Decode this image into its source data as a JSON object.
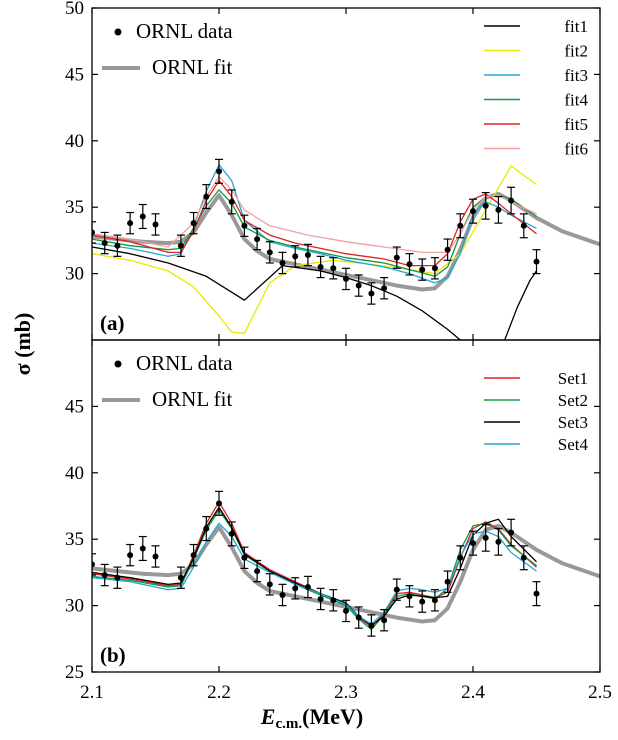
{
  "colors": {
    "data": "#000000",
    "ornl_fit": "#999999",
    "fit1": "#000000",
    "fit2": "#e8e800",
    "fit3": "#22a6d6",
    "fit4": "#119944",
    "fit5": "#dd2222",
    "fit6": "#f2a0a0",
    "set1": "#dd2222",
    "set2": "#119944",
    "set3": "#000000",
    "set4": "#22a6d6"
  },
  "chart_data": [
    {
      "type": "line",
      "panel_label": "(a)",
      "xlabel": "E",
      "xlabel_subscript": "c.m.",
      "xlabel_unit": "(MeV)",
      "ylabel": "σ (mb)",
      "xlim": [
        2.1,
        2.5
      ],
      "ylim": [
        25,
        50
      ],
      "x_ticks": [
        "2.1",
        "2.2",
        "2.3",
        "2.4",
        "2.5"
      ],
      "y_ticks": [
        "30",
        "35",
        "40",
        "45",
        "50"
      ],
      "legend_left": [
        "ORNL data",
        "ORNL fit"
      ],
      "legend_right": [
        "fit1",
        "fit2",
        "fit3",
        "fit4",
        "fit5",
        "fit6"
      ],
      "data_points": {
        "name": "ORNL data",
        "x": [
          2.1,
          2.11,
          2.12,
          2.13,
          2.14,
          2.15,
          2.17,
          2.18,
          2.19,
          2.2,
          2.21,
          2.22,
          2.23,
          2.24,
          2.25,
          2.26,
          2.27,
          2.28,
          2.29,
          2.3,
          2.31,
          2.32,
          2.33,
          2.34,
          2.35,
          2.36,
          2.37,
          2.38,
          2.39,
          2.4,
          2.41,
          2.42,
          2.43,
          2.44,
          2.45
        ],
        "y": [
          33.1,
          32.3,
          32.1,
          33.8,
          34.3,
          33.7,
          32.1,
          33.8,
          35.8,
          37.7,
          35.4,
          33.6,
          32.6,
          31.6,
          30.8,
          31.3,
          31.4,
          30.5,
          30.4,
          29.6,
          29.1,
          28.5,
          28.9,
          31.2,
          30.7,
          30.3,
          30.4,
          31.8,
          33.6,
          34.7,
          35.1,
          34.8,
          35.5,
          33.6,
          30.9
        ],
        "err": [
          0.8,
          0.8,
          0.8,
          0.8,
          0.9,
          0.8,
          0.8,
          0.8,
          0.9,
          0.9,
          0.9,
          0.8,
          0.8,
          0.8,
          0.8,
          0.8,
          0.8,
          0.8,
          0.8,
          0.8,
          0.8,
          0.8,
          0.8,
          0.8,
          0.8,
          0.8,
          0.8,
          0.8,
          0.9,
          0.9,
          1.0,
          1.0,
          1.0,
          0.9,
          0.9
        ]
      },
      "ornl_fit": {
        "name": "ORNL fit",
        "x": [
          2.1,
          2.12,
          2.14,
          2.16,
          2.17,
          2.18,
          2.19,
          2.2,
          2.21,
          2.22,
          2.23,
          2.24,
          2.26,
          2.28,
          2.3,
          2.32,
          2.34,
          2.36,
          2.37,
          2.38,
          2.39,
          2.4,
          2.41,
          2.42,
          2.43,
          2.45,
          2.47,
          2.5
        ],
        "y": [
          32.8,
          32.6,
          32.4,
          32.3,
          32.4,
          33.1,
          34.6,
          35.9,
          34.4,
          32.6,
          31.7,
          31.1,
          30.7,
          30.3,
          29.9,
          29.5,
          29.1,
          28.8,
          28.9,
          29.8,
          31.8,
          34.2,
          35.7,
          36.0,
          35.5,
          34.2,
          33.2,
          32.2
        ]
      },
      "series": [
        {
          "name": "fit1",
          "x": [
            2.1,
            2.13,
            2.16,
            2.19,
            2.22,
            2.25,
            2.28,
            2.3,
            2.32,
            2.34,
            2.36,
            2.38,
            2.39
          ],
          "y": [
            32.0,
            31.5,
            30.8,
            29.8,
            28.0,
            30.6,
            30.2,
            29.7,
            29.1,
            28.3,
            27.2,
            25.8,
            25.0
          ]
        },
        {
          "name": "fit1",
          "x": [
            2.425,
            2.435,
            2.445,
            2.45
          ],
          "y": [
            25.0,
            27.5,
            29.5,
            30.2
          ]
        },
        {
          "name": "fit2",
          "x": [
            2.1,
            2.13,
            2.16,
            2.18,
            2.2,
            2.21,
            2.22,
            2.24,
            2.26,
            2.29,
            2.32,
            2.35,
            2.37,
            2.39,
            2.41,
            2.43,
            2.45
          ],
          "y": [
            31.5,
            31.0,
            30.2,
            29.0,
            26.8,
            25.6,
            25.5,
            29.3,
            30.6,
            31.0,
            30.7,
            30.3,
            30.0,
            31.5,
            34.8,
            38.1,
            36.7
          ]
        },
        {
          "name": "fit3",
          "x": [
            2.1,
            2.13,
            2.16,
            2.17,
            2.18,
            2.19,
            2.2,
            2.21,
            2.22,
            2.24,
            2.26,
            2.28,
            2.3,
            2.33,
            2.35,
            2.37,
            2.38,
            2.39,
            2.4,
            2.41,
            2.42,
            2.43,
            2.45
          ],
          "y": [
            32.3,
            31.9,
            31.3,
            31.5,
            33.5,
            36.2,
            38.2,
            37.0,
            34.0,
            32.4,
            31.9,
            31.5,
            31.0,
            30.5,
            30.0,
            29.3,
            29.7,
            31.5,
            34.5,
            35.4,
            35.0,
            34.4,
            33.4
          ]
        },
        {
          "name": "fit4",
          "x": [
            2.1,
            2.13,
            2.16,
            2.17,
            2.18,
            2.19,
            2.2,
            2.21,
            2.22,
            2.24,
            2.26,
            2.28,
            2.3,
            2.33,
            2.35,
            2.37,
            2.38,
            2.39,
            2.4,
            2.41,
            2.42,
            2.43,
            2.45
          ],
          "y": [
            32.6,
            32.1,
            31.8,
            31.9,
            33.4,
            35.1,
            36.3,
            35.3,
            33.5,
            32.5,
            32.0,
            31.6,
            31.2,
            30.8,
            30.3,
            29.8,
            30.5,
            33.0,
            35.0,
            35.8,
            35.9,
            35.6,
            34.3
          ]
        },
        {
          "name": "fit5",
          "x": [
            2.1,
            2.13,
            2.16,
            2.17,
            2.18,
            2.19,
            2.2,
            2.21,
            2.22,
            2.24,
            2.26,
            2.28,
            2.3,
            2.33,
            2.35,
            2.37,
            2.38,
            2.39,
            2.4,
            2.41,
            2.42,
            2.43,
            2.45
          ],
          "y": [
            32.9,
            32.4,
            31.6,
            31.6,
            33.2,
            35.5,
            37.0,
            35.8,
            34.0,
            32.9,
            32.3,
            31.9,
            31.5,
            31.1,
            30.6,
            30.6,
            31.5,
            33.9,
            35.6,
            36.0,
            35.3,
            34.5,
            33.0
          ]
        },
        {
          "name": "fit6",
          "x": [
            2.1,
            2.13,
            2.16,
            2.18,
            2.19,
            2.2,
            2.21,
            2.22,
            2.24,
            2.27,
            2.3,
            2.33,
            2.36,
            2.38,
            2.39,
            2.4,
            2.41,
            2.42,
            2.43,
            2.45
          ],
          "y": [
            33.0,
            32.6,
            32.0,
            33.8,
            35.8,
            37.3,
            36.3,
            34.8,
            33.6,
            32.9,
            32.4,
            32.0,
            31.6,
            31.6,
            33.0,
            34.8,
            35.8,
            35.9,
            35.4,
            34.5
          ]
        }
      ]
    },
    {
      "type": "line",
      "panel_label": "(b)",
      "xlabel": "E",
      "xlabel_subscript": "c.m.",
      "xlabel_unit": "(MeV)",
      "ylabel": "σ (mb)",
      "xlim": [
        2.1,
        2.5
      ],
      "ylim": [
        25,
        50
      ],
      "x_ticks": [
        "2.1",
        "2.2",
        "2.3",
        "2.4",
        "2.5"
      ],
      "y_ticks": [
        "25",
        "30",
        "35",
        "40",
        "45"
      ],
      "legend_left": [
        "ORNL data",
        "ORNL fit"
      ],
      "legend_right": [
        "Set1",
        "Set2",
        "Set3",
        "Set4"
      ],
      "data_points": {
        "name": "ORNL data",
        "x": [
          2.1,
          2.11,
          2.12,
          2.13,
          2.14,
          2.15,
          2.17,
          2.18,
          2.19,
          2.2,
          2.21,
          2.22,
          2.23,
          2.24,
          2.25,
          2.26,
          2.27,
          2.28,
          2.29,
          2.3,
          2.31,
          2.32,
          2.33,
          2.34,
          2.35,
          2.36,
          2.37,
          2.38,
          2.39,
          2.4,
          2.41,
          2.42,
          2.43,
          2.44,
          2.45
        ],
        "y": [
          33.1,
          32.3,
          32.1,
          33.8,
          34.3,
          33.7,
          32.1,
          33.8,
          35.8,
          37.7,
          35.4,
          33.6,
          32.6,
          31.6,
          30.8,
          31.3,
          31.4,
          30.5,
          30.4,
          29.6,
          29.1,
          28.5,
          28.9,
          31.2,
          30.7,
          30.3,
          30.4,
          31.8,
          33.6,
          34.7,
          35.1,
          34.8,
          35.5,
          33.6,
          30.9
        ],
        "err": [
          0.8,
          0.8,
          0.8,
          0.8,
          0.9,
          0.8,
          0.8,
          0.8,
          0.9,
          0.9,
          0.9,
          0.8,
          0.8,
          0.8,
          0.8,
          0.8,
          0.8,
          0.8,
          0.8,
          0.8,
          0.8,
          0.8,
          0.8,
          0.8,
          0.8,
          0.8,
          0.8,
          0.8,
          0.9,
          0.9,
          1.0,
          1.0,
          1.0,
          0.9,
          0.9
        ]
      },
      "ornl_fit": {
        "name": "ORNL fit",
        "x": [
          2.1,
          2.12,
          2.14,
          2.16,
          2.17,
          2.18,
          2.19,
          2.2,
          2.21,
          2.22,
          2.23,
          2.24,
          2.26,
          2.28,
          2.3,
          2.32,
          2.34,
          2.36,
          2.37,
          2.38,
          2.39,
          2.4,
          2.41,
          2.42,
          2.43,
          2.45,
          2.47,
          2.5
        ],
        "y": [
          32.8,
          32.6,
          32.4,
          32.3,
          32.4,
          33.1,
          34.6,
          35.9,
          34.4,
          32.6,
          31.7,
          31.1,
          30.7,
          30.3,
          29.9,
          29.5,
          29.1,
          28.8,
          28.9,
          29.8,
          31.8,
          34.2,
          35.7,
          36.0,
          35.5,
          34.2,
          33.2,
          32.2
        ]
      },
      "series": [
        {
          "name": "Set1",
          "x": [
            2.1,
            2.13,
            2.16,
            2.17,
            2.18,
            2.19,
            2.2,
            2.21,
            2.22,
            2.24,
            2.26,
            2.28,
            2.3,
            2.31,
            2.32,
            2.33,
            2.34,
            2.35,
            2.36,
            2.37,
            2.38,
            2.39,
            2.4,
            2.41,
            2.42,
            2.43,
            2.45
          ],
          "y": [
            32.4,
            32.0,
            31.5,
            31.6,
            33.8,
            36.2,
            37.8,
            36.2,
            34.0,
            32.7,
            31.8,
            30.9,
            30.1,
            29.1,
            28.4,
            29.4,
            30.9,
            31.0,
            30.8,
            30.6,
            31.0,
            33.6,
            35.8,
            36.3,
            35.8,
            34.6,
            32.9
          ]
        },
        {
          "name": "Set2",
          "x": [
            2.1,
            2.13,
            2.16,
            2.17,
            2.18,
            2.19,
            2.2,
            2.21,
            2.22,
            2.24,
            2.26,
            2.28,
            2.3,
            2.31,
            2.32,
            2.33,
            2.34,
            2.35,
            2.36,
            2.37,
            2.38,
            2.39,
            2.4,
            2.41,
            2.42,
            2.43,
            2.45
          ],
          "y": [
            32.2,
            31.9,
            31.4,
            31.5,
            33.5,
            35.7,
            37.2,
            35.8,
            33.8,
            32.6,
            31.6,
            30.8,
            30.0,
            29.0,
            28.2,
            29.3,
            30.7,
            30.9,
            30.7,
            30.5,
            31.3,
            34.2,
            36.0,
            36.2,
            35.7,
            34.5,
            33.0
          ]
        },
        {
          "name": "Set3",
          "x": [
            2.1,
            2.13,
            2.16,
            2.17,
            2.18,
            2.19,
            2.2,
            2.21,
            2.22,
            2.24,
            2.26,
            2.28,
            2.3,
            2.31,
            2.32,
            2.33,
            2.34,
            2.35,
            2.36,
            2.37,
            2.38,
            2.39,
            2.4,
            2.41,
            2.42,
            2.43,
            2.45
          ],
          "y": [
            32.5,
            32.1,
            31.6,
            31.7,
            33.6,
            35.9,
            37.4,
            35.9,
            33.9,
            32.6,
            31.7,
            30.9,
            30.2,
            29.2,
            28.5,
            29.2,
            30.5,
            30.8,
            30.7,
            30.6,
            30.7,
            32.8,
            35.3,
            36.2,
            36.5,
            35.2,
            33.3
          ]
        },
        {
          "name": "Set4",
          "x": [
            2.1,
            2.13,
            2.16,
            2.17,
            2.18,
            2.19,
            2.2,
            2.21,
            2.22,
            2.24,
            2.26,
            2.28,
            2.3,
            2.31,
            2.32,
            2.33,
            2.34,
            2.35,
            2.36,
            2.37,
            2.38,
            2.39,
            2.4,
            2.41,
            2.42,
            2.43,
            2.45
          ],
          "y": [
            32.1,
            31.8,
            31.2,
            31.3,
            32.9,
            34.8,
            36.2,
            35.2,
            33.5,
            32.5,
            31.6,
            30.9,
            30.1,
            29.2,
            28.6,
            29.5,
            31.1,
            31.3,
            31.2,
            31.0,
            31.3,
            33.7,
            35.4,
            35.6,
            35.2,
            34.0,
            32.6
          ]
        }
      ]
    }
  ]
}
